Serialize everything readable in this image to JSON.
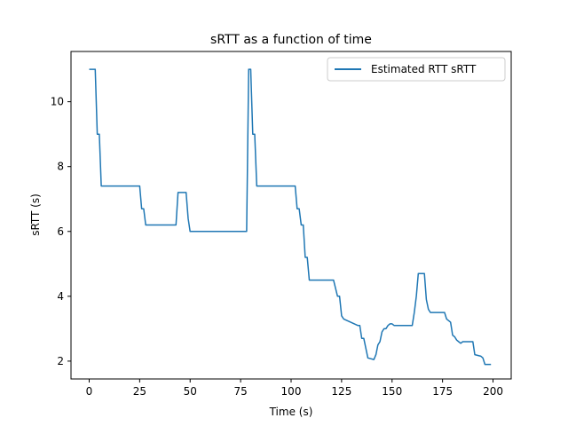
{
  "chart_data": {
    "type": "line",
    "title": "sRTT as a function of time",
    "xlabel": "Time (s)",
    "ylabel": "sRTT (s)",
    "xlim": [
      -9,
      209
    ],
    "ylim": [
      1.45,
      11.55
    ],
    "xticks": [
      0,
      25,
      50,
      75,
      100,
      125,
      150,
      175,
      200
    ],
    "yticks": [
      2,
      4,
      6,
      8,
      10
    ],
    "grid": false,
    "legend": "upper right",
    "series": [
      {
        "name": "Estimated RTT sRTT",
        "color": "#1f77b4",
        "x": [
          0,
          3,
          4,
          5,
          6,
          25,
          26,
          27,
          28,
          43,
          44,
          48,
          49,
          50,
          78,
          79,
          80,
          81,
          82,
          83,
          100,
          102,
          103,
          104,
          105,
          106,
          107,
          108,
          109,
          120,
          121,
          123,
          124,
          125,
          126,
          133,
          134,
          135,
          136,
          137,
          138,
          141,
          142,
          143,
          144,
          145,
          146,
          147,
          148,
          149,
          150,
          151,
          153,
          154,
          160,
          161,
          162,
          163,
          166,
          167,
          168,
          169,
          176,
          177,
          179,
          180,
          181,
          182,
          183,
          184,
          185,
          186,
          190,
          191,
          194,
          195,
          196,
          199
        ],
        "y": [
          11,
          11,
          9,
          9,
          7.4,
          7.4,
          6.7,
          6.7,
          6.2,
          6.2,
          7.2,
          7.2,
          6.4,
          6,
          6,
          11,
          11,
          9,
          9,
          7.4,
          7.4,
          7.4,
          6.7,
          6.7,
          6.2,
          6.2,
          5.2,
          5.2,
          4.5,
          4.5,
          4.5,
          4.0,
          4.0,
          3.4,
          3.3,
          3.1,
          3.1,
          2.7,
          2.7,
          2.4,
          2.1,
          2.05,
          2.2,
          2.5,
          2.6,
          2.9,
          3.0,
          3.0,
          3.1,
          3.15,
          3.15,
          3.1,
          3.1,
          3.1,
          3.1,
          3.5,
          4.0,
          4.7,
          4.7,
          3.9,
          3.6,
          3.5,
          3.5,
          3.3,
          3.2,
          2.8,
          2.75,
          2.65,
          2.6,
          2.55,
          2.6,
          2.6,
          2.6,
          2.2,
          2.15,
          2.1,
          1.9,
          1.9
        ]
      }
    ]
  }
}
